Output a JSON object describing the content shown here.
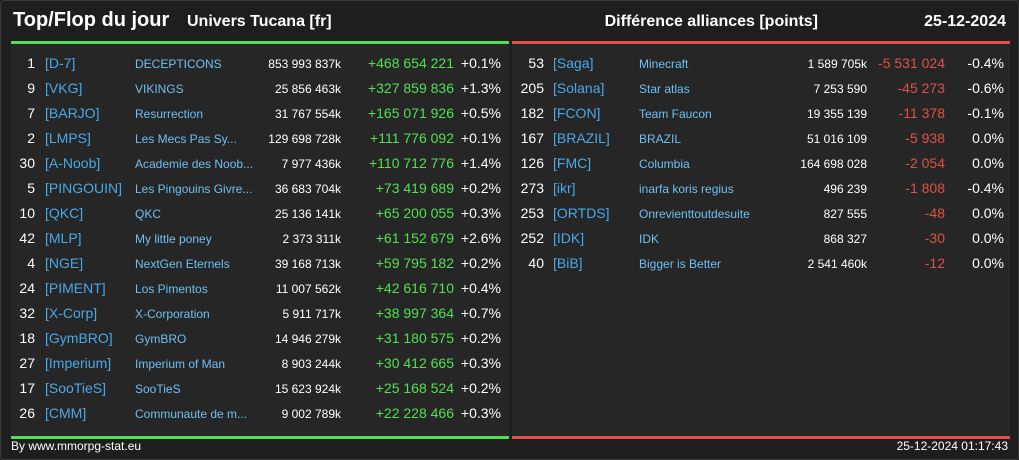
{
  "header": {
    "title": "Top/Flop du jour",
    "subtitle": "Univers Tucana [fr]",
    "right_title": "Différence alliances [points]",
    "date": "25-12-2024"
  },
  "colors": {
    "positive": "#52e052",
    "negative": "#e05048",
    "tag": "#4aa8e8",
    "name": "#6ec0f0"
  },
  "top": [
    {
      "rank": "1",
      "tag": "[D-7]",
      "name": "DECEPTICONS",
      "total": "853 993 837k",
      "diff": "+468 654 221",
      "pct": "+0.1%"
    },
    {
      "rank": "9",
      "tag": "[VKG]",
      "name": "VIKINGS",
      "total": "25 856 463k",
      "diff": "+327 859 836",
      "pct": "+1.3%"
    },
    {
      "rank": "7",
      "tag": "[BARJO]",
      "name": "Resurrection",
      "total": "31 767 554k",
      "diff": "+165 071 926",
      "pct": "+0.5%"
    },
    {
      "rank": "2",
      "tag": "[LMPS]",
      "name": "Les Mecs Pas Sy...",
      "total": "129 698 728k",
      "diff": "+111 776 092",
      "pct": "+0.1%"
    },
    {
      "rank": "30",
      "tag": "[A-Noob]",
      "name": "Academie des Noob...",
      "total": "7 977 436k",
      "diff": "+110 712 776",
      "pct": "+1.4%"
    },
    {
      "rank": "5",
      "tag": "[PINGOUIN]",
      "name": "Les Pingouins Givre...",
      "total": "36 683 704k",
      "diff": "+73 419 689",
      "pct": "+0.2%"
    },
    {
      "rank": "10",
      "tag": "[QKC]",
      "name": "QKC",
      "total": "25 136 141k",
      "diff": "+65 200 055",
      "pct": "+0.3%"
    },
    {
      "rank": "42",
      "tag": "[MLP]",
      "name": "My little poney",
      "total": "2 373 311k",
      "diff": "+61 152 679",
      "pct": "+2.6%"
    },
    {
      "rank": "4",
      "tag": "[NGE]",
      "name": "NextGen Eternels",
      "total": "39 168 713k",
      "diff": "+59 795 182",
      "pct": "+0.2%"
    },
    {
      "rank": "24",
      "tag": "[PIMENT]",
      "name": "Los Pimentos",
      "total": "11 007 562k",
      "diff": "+42 616 710",
      "pct": "+0.4%"
    },
    {
      "rank": "32",
      "tag": "[X-Corp]",
      "name": "X-Corporation",
      "total": "5 911 717k",
      "diff": "+38 997 364",
      "pct": "+0.7%"
    },
    {
      "rank": "18",
      "tag": "[GymBRO]",
      "name": "GymBRO",
      "total": "14 946 279k",
      "diff": "+31 180 575",
      "pct": "+0.2%"
    },
    {
      "rank": "27",
      "tag": "[Imperium]",
      "name": "Imperium of Man",
      "total": "8 903 244k",
      "diff": "+30 412 665",
      "pct": "+0.3%"
    },
    {
      "rank": "17",
      "tag": "[SooTieS]",
      "name": "SooTieS",
      "total": "15 623 924k",
      "diff": "+25 168 524",
      "pct": "+0.2%"
    },
    {
      "rank": "26",
      "tag": "[CMM]",
      "name": "Communaute de m...",
      "total": "9 002 789k",
      "diff": "+22 228 466",
      "pct": "+0.3%"
    }
  ],
  "flop": [
    {
      "rank": "53",
      "tag": "[Saga]",
      "name": "Minecraft",
      "total": "1 589 705k",
      "diff": "-5 531 024",
      "pct": "-0.4%"
    },
    {
      "rank": "205",
      "tag": "[Solana]",
      "name": "Star atlas",
      "total": "7 253 590",
      "diff": "-45 273",
      "pct": "-0.6%"
    },
    {
      "rank": "182",
      "tag": "[FCON]",
      "name": "Team Faucon",
      "total": "19 355 139",
      "diff": "-11 378",
      "pct": "-0.1%"
    },
    {
      "rank": "167",
      "tag": "[BRAZIL]",
      "name": "BRAZIL",
      "total": "51 016 109",
      "diff": "-5 938",
      "pct": "0.0%"
    },
    {
      "rank": "126",
      "tag": "[FMC]",
      "name": "Columbia",
      "total": "164 698 028",
      "diff": "-2 054",
      "pct": "0.0%"
    },
    {
      "rank": "273",
      "tag": "[ikr]",
      "name": "inarfa koris regius",
      "total": "496 239",
      "diff": "-1 808",
      "pct": "-0.4%"
    },
    {
      "rank": "253",
      "tag": "[ORTDS]",
      "name": "Onrevienttoutdesuite",
      "total": "827 555",
      "diff": "-48",
      "pct": "0.0%"
    },
    {
      "rank": "252",
      "tag": "[IDK]",
      "name": "IDK",
      "total": "868 327",
      "diff": "-30",
      "pct": "0.0%"
    },
    {
      "rank": "40",
      "tag": "[BiB]",
      "name": "Bigger is Better",
      "total": "2 541 460k",
      "diff": "-12",
      "pct": "0.0%"
    }
  ],
  "footer": {
    "source": "By www.mmorpg-stat.eu",
    "timestamp": "25-12-2024 01:17:43"
  }
}
